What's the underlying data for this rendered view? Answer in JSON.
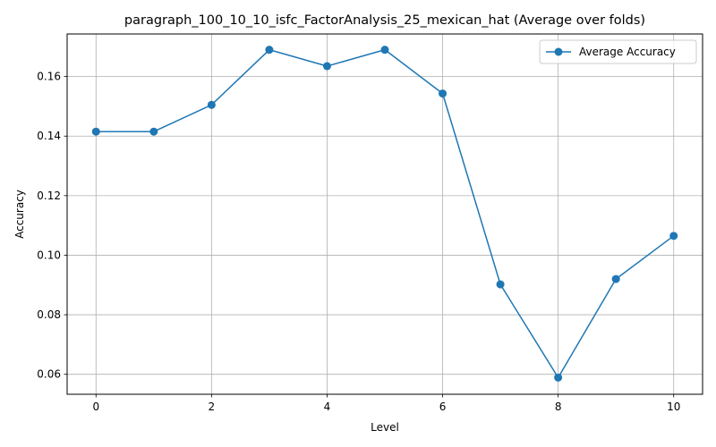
{
  "chart_data": {
    "type": "line",
    "title": "paragraph_100_10_10_isfc_FactorAnalysis_25_mexican_hat (Average over folds)",
    "xlabel": "Level",
    "ylabel": "Accuracy",
    "xlim": [
      -0.5,
      10.5
    ],
    "ylim": [
      0.0533,
      0.1743
    ],
    "xticks": [
      0,
      2,
      4,
      6,
      8,
      10
    ],
    "xtick_labels": [
      "0",
      "2",
      "4",
      "6",
      "8",
      "10"
    ],
    "yticks": [
      0.06,
      0.08,
      0.1,
      0.12,
      0.14,
      0.16
    ],
    "ytick_labels": [
      "0.06",
      "0.08",
      "0.10",
      "0.12",
      "0.14",
      "0.16"
    ],
    "grid": true,
    "legend_position": "top-right",
    "series": [
      {
        "name": "Average Accuracy",
        "color": "#1f77b4",
        "marker": "circle",
        "x": [
          0,
          1,
          2,
          3,
          4,
          5,
          6,
          7,
          8,
          9,
          10
        ],
        "values": [
          0.1415,
          0.1415,
          0.1505,
          0.169,
          0.1635,
          0.169,
          0.1543,
          0.0902,
          0.0589,
          0.092,
          0.1065
        ]
      }
    ]
  }
}
